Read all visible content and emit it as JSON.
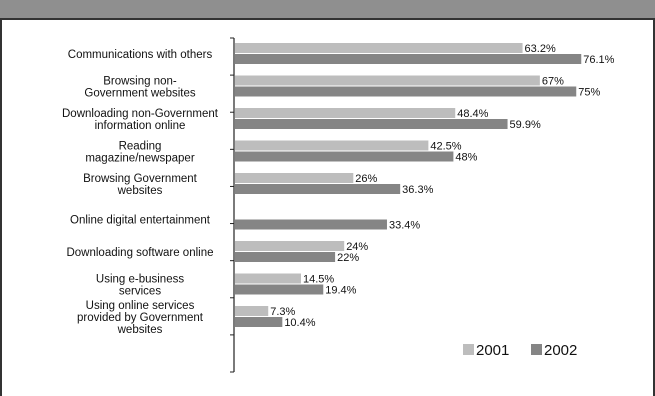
{
  "chart_data": {
    "type": "bar",
    "orientation": "horizontal",
    "categories": [
      [
        "Communications with others"
      ],
      [
        "Browsing non-",
        "Government websites"
      ],
      [
        "Downloading non-Government",
        "information online"
      ],
      [
        "Reading",
        "magazine/newspaper"
      ],
      [
        "Browsing Government",
        "websites"
      ],
      [
        "Online digital entertainment"
      ],
      [
        "Downloading software online"
      ],
      [
        "Using e-business",
        "services"
      ],
      [
        "Using online services",
        "provided by Government",
        "websites"
      ]
    ],
    "series": [
      {
        "name": "2001",
        "color": "#bdbdbd",
        "values": [
          63.2,
          67,
          48.4,
          42.5,
          26,
          null,
          24,
          14.5,
          7.3
        ],
        "labels": [
          "63.2%",
          "67%",
          "48.4%",
          "42.5%",
          "26%",
          "",
          "24%",
          "14.5%",
          "7.3%"
        ]
      },
      {
        "name": "2002",
        "color": "#858585",
        "values": [
          76.1,
          75,
          59.9,
          48,
          36.3,
          33.4,
          22,
          19.4,
          10.4
        ],
        "labels": [
          "76.1%",
          "75%",
          "59.9%",
          "48%",
          "36.3%",
          "33.4%",
          "22%",
          "19.4%",
          "10.4%"
        ]
      }
    ],
    "xlim": [
      0,
      100
    ],
    "grid": false,
    "legend_position": "bottom-right"
  }
}
